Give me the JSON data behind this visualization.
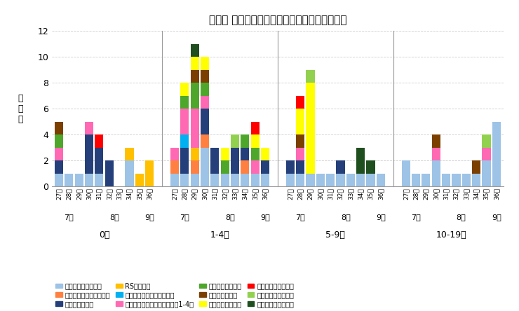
{
  "title": "年齢別 病原体検出数の推移（不検出を除く）",
  "title_main": "年齢別 病原体検出数の推移",
  "title_sub": "（不検出を除く）",
  "ylabel_chars": [
    "検",
    "出",
    "数"
  ],
  "ylim": [
    0,
    12
  ],
  "yticks": [
    0,
    2,
    4,
    6,
    8,
    10,
    12
  ],
  "weeks": [
    "27週",
    "28週",
    "29週",
    "30週",
    "31週",
    "32週",
    "33週",
    "34週",
    "35週",
    "36週"
  ],
  "age_groups": [
    "0歳",
    "1-4歳",
    "5-9歳",
    "10-19歳"
  ],
  "pathogens": [
    "新型コロナウイルス",
    "インフルエンザウイルス",
    "ライノウイルス",
    "RSウイルス",
    "ヒトメタニューモウイルス",
    "パラインフルエンザウイルス1-4型",
    "ヒトボカウイルス",
    "アデノウイルス",
    "エンテロウイルス",
    "ヒトパレコウイルス",
    "ヒトコロナウイルス",
    "肺炎マイコプラズマ"
  ],
  "colors": {
    "新型コロナウイルス": "#9DC3E6",
    "インフルエンザウイルス": "#FF8040",
    "ライノウイルス": "#243F7A",
    "RSウイルス": "#FFC000",
    "ヒトメタニューモウイルス": "#00B0F0",
    "パラインフルエンザウイルス1-4型": "#FF69B4",
    "ヒトボカウイルス": "#375623",
    "アデノウイルス": "#7B3F00",
    "エンテロウイルス": "#FFFF00",
    "ヒトパレコウイルス": "#FF0000",
    "ヒトコロナウイルス": "#92D050",
    "肺炎マイコプラズマ": "#375623"
  },
  "data": {
    "0歳": {
      "新型コロナウイルス": [
        1,
        1,
        1,
        1,
        1,
        0,
        0,
        2,
        0,
        0
      ],
      "インフルエンザウイルス": [
        0,
        0,
        0,
        0,
        0,
        0,
        0,
        0,
        0,
        0
      ],
      "ライノウイルス": [
        1,
        0,
        0,
        3,
        2,
        2,
        0,
        0,
        0,
        0
      ],
      "RSウイルス": [
        0,
        0,
        0,
        0,
        0,
        0,
        0,
        1,
        1,
        2
      ],
      "ヒトメタニューモウイルス": [
        0,
        0,
        0,
        0,
        0,
        0,
        0,
        0,
        0,
        0
      ],
      "パラインフルエンザウイルス1-4型": [
        1,
        0,
        0,
        1,
        0,
        0,
        0,
        0,
        0,
        0
      ],
      "ヒトボカウイルス": [
        1,
        0,
        0,
        0,
        0,
        0,
        0,
        0,
        0,
        0
      ],
      "アデノウイルス": [
        1,
        0,
        0,
        0,
        0,
        0,
        0,
        0,
        0,
        0
      ],
      "エンテロウイルス": [
        0,
        0,
        0,
        0,
        0,
        0,
        0,
        0,
        0,
        0
      ],
      "ヒトパレコウイルス": [
        0,
        0,
        0,
        0,
        1,
        0,
        0,
        0,
        0,
        0
      ],
      "ヒトコロナウイルス": [
        0,
        0,
        0,
        0,
        0,
        0,
        0,
        0,
        0,
        0
      ],
      "肺炎マイコプラズマ": [
        0,
        0,
        0,
        0,
        0,
        0,
        0,
        0,
        0,
        0
      ]
    },
    "1-4歳": {
      "新型コロナウイルス": [
        1,
        1,
        1,
        3,
        1,
        1,
        1,
        1,
        1,
        1
      ],
      "インフルエンザウイルス": [
        1,
        0,
        1,
        1,
        0,
        0,
        0,
        1,
        0,
        0
      ],
      "ライノウイルス": [
        0,
        2,
        0,
        2,
        2,
        0,
        2,
        1,
        0,
        1
      ],
      "RSウイルス": [
        0,
        0,
        1,
        0,
        0,
        0,
        0,
        0,
        0,
        0
      ],
      "ヒトメタニューモウイルス": [
        0,
        1,
        0,
        0,
        0,
        0,
        0,
        0,
        0,
        0
      ],
      "パラインフルエンザウイルス1-4型": [
        1,
        2,
        3,
        1,
        0,
        0,
        0,
        0,
        1,
        0
      ],
      "ヒトボカウイルス": [
        0,
        1,
        2,
        1,
        0,
        1,
        0,
        1,
        1,
        0
      ],
      "アデノウイルス": [
        0,
        0,
        1,
        1,
        0,
        0,
        0,
        0,
        0,
        0
      ],
      "エンテロウイルス": [
        0,
        1,
        1,
        1,
        0,
        1,
        0,
        0,
        1,
        1
      ],
      "ヒトパレコウイルス": [
        0,
        0,
        0,
        0,
        0,
        0,
        0,
        0,
        1,
        0
      ],
      "ヒトコロナウイルス": [
        0,
        0,
        0,
        0,
        0,
        0,
        1,
        0,
        0,
        0
      ],
      "肺炎マイコプラズマ": [
        0,
        0,
        1,
        0,
        0,
        0,
        0,
        0,
        0,
        0
      ]
    },
    "5-9歳": {
      "新型コロナウイルス": [
        1,
        1,
        1,
        1,
        1,
        1,
        1,
        1,
        1,
        1
      ],
      "インフルエンザウイルス": [
        0,
        0,
        0,
        0,
        0,
        0,
        0,
        0,
        0,
        0
      ],
      "ライノウイルス": [
        1,
        1,
        0,
        0,
        0,
        1,
        0,
        0,
        0,
        0
      ],
      "RSウイルス": [
        0,
        0,
        0,
        0,
        0,
        0,
        0,
        0,
        0,
        0
      ],
      "ヒトメタニューモウイルス": [
        0,
        0,
        0,
        0,
        0,
        0,
        0,
        0,
        0,
        0
      ],
      "パラインフルエンザウイルス1-4型": [
        0,
        1,
        0,
        0,
        0,
        0,
        0,
        0,
        0,
        0
      ],
      "ヒトボカウイルス": [
        0,
        0,
        0,
        0,
        0,
        0,
        0,
        0,
        0,
        0
      ],
      "アデノウイルス": [
        0,
        1,
        0,
        0,
        0,
        0,
        0,
        0,
        0,
        0
      ],
      "エンテロウイルス": [
        0,
        2,
        7,
        0,
        0,
        0,
        0,
        0,
        0,
        0
      ],
      "ヒトパレコウイルス": [
        0,
        1,
        0,
        0,
        0,
        0,
        0,
        0,
        0,
        0
      ],
      "ヒトコロナウイルス": [
        0,
        0,
        1,
        0,
        0,
        0,
        0,
        0,
        0,
        0
      ],
      "肺炎マイコプラズマ": [
        0,
        0,
        0,
        0,
        0,
        0,
        0,
        2,
        1,
        0
      ]
    },
    "10-19歳": {
      "新型コロナウイルス": [
        2,
        1,
        1,
        2,
        1,
        1,
        1,
        1,
        2,
        5
      ],
      "インフルエンザウイルス": [
        0,
        0,
        0,
        0,
        0,
        0,
        0,
        0,
        0,
        0
      ],
      "ライノウイルス": [
        0,
        0,
        0,
        0,
        0,
        0,
        0,
        0,
        0,
        0
      ],
      "RSウイルス": [
        0,
        0,
        0,
        0,
        0,
        0,
        0,
        0,
        0,
        0
      ],
      "ヒトメタニューモウイルス": [
        0,
        0,
        0,
        0,
        0,
        0,
        0,
        0,
        0,
        0
      ],
      "パラインフルエンザウイルス1-4型": [
        0,
        0,
        0,
        1,
        0,
        0,
        0,
        0,
        1,
        0
      ],
      "ヒトボカウイルス": [
        0,
        0,
        0,
        0,
        0,
        0,
        0,
        0,
        0,
        0
      ],
      "アデノウイルス": [
        0,
        0,
        0,
        1,
        0,
        0,
        0,
        1,
        0,
        0
      ],
      "エンテロウイルス": [
        0,
        0,
        0,
        0,
        0,
        0,
        0,
        0,
        0,
        0
      ],
      "ヒトパレコウイルス": [
        0,
        0,
        0,
        0,
        0,
        0,
        0,
        0,
        0,
        0
      ],
      "ヒトコロナウイルス": [
        0,
        0,
        0,
        0,
        0,
        0,
        0,
        0,
        1,
        0
      ],
      "肺炎マイコプラズマ": [
        0,
        0,
        0,
        0,
        0,
        0,
        0,
        0,
        0,
        0
      ]
    }
  },
  "month_map": {
    "27週": "7月",
    "28週": "7月",
    "29週": "7月",
    "30週": "8月",
    "31週": "8月",
    "32週": "8月",
    "33週": "8月",
    "34週": "8月",
    "35週": "8月",
    "36週": "9月"
  },
  "legend_order": [
    [
      "新型コロナウイルス",
      "インフルエンザウイルス",
      "ライノウイルス",
      "RSウイルス"
    ],
    [
      "ヒトメタニューモウイルス",
      "パラインフルエンザウイルス1-4型",
      "ヒトボカウイルス",
      "アデノウイルス"
    ],
    [
      "エンテロウイルス",
      "ヒトパレコウイルス",
      "ヒトコロナウイルス",
      "肺炎マイコプラズマ"
    ]
  ]
}
